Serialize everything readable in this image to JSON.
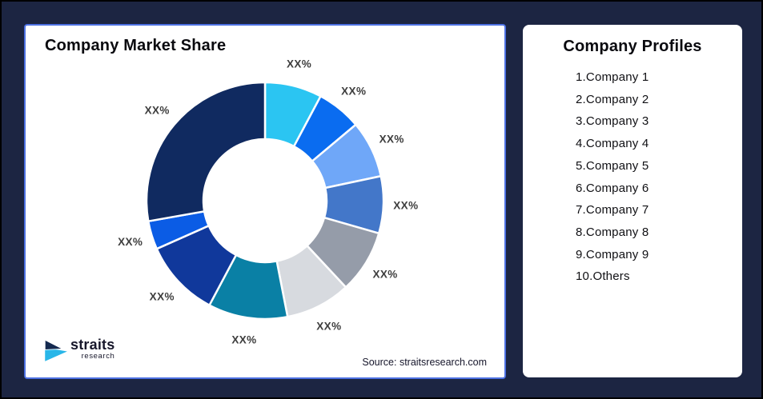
{
  "colors": {
    "background": "#1c2542",
    "frame_border": "#000000",
    "card_background": "#ffffff",
    "market_card_border": "#4c70e2",
    "segment_label_text": "#3e3e3e",
    "title_text": "#0a0a0f"
  },
  "market_share_card": {
    "title": "Company Market Share",
    "source": "Source: straitsresearch.com",
    "logo": {
      "brand": "straits",
      "sub": "research",
      "icon_navy": "#14294f",
      "icon_cyan": "#29b6e8"
    }
  },
  "chart_data": {
    "type": "pie",
    "subtype": "donut",
    "title": "Company Market Share",
    "inner_radius_ratio": 0.52,
    "values_note": "all slice labels shown as placeholder XX%",
    "segments": [
      {
        "label": "XX%",
        "color": "#2bc5f2",
        "start_deg": 0,
        "end_deg": 28
      },
      {
        "label": "XX%",
        "color": "#0a6cf0",
        "start_deg": 28,
        "end_deg": 50
      },
      {
        "label": "XX%",
        "color": "#6fa7f8",
        "start_deg": 50,
        "end_deg": 78
      },
      {
        "label": "XX%",
        "color": "#4377c9",
        "start_deg": 78,
        "end_deg": 106
      },
      {
        "label": "XX%",
        "color": "#959ca9",
        "start_deg": 106,
        "end_deg": 137
      },
      {
        "label": "XX%",
        "color": "#d7dadf",
        "start_deg": 137,
        "end_deg": 169
      },
      {
        "label": "XX%",
        "color": "#0a80a5",
        "start_deg": 169,
        "end_deg": 208
      },
      {
        "label": "XX%",
        "color": "#10389b",
        "start_deg": 208,
        "end_deg": 246
      },
      {
        "label": "XX%",
        "color": "#0b5ce5",
        "start_deg": 246,
        "end_deg": 260
      },
      {
        "label": "XX%",
        "color": "#102a60",
        "start_deg": 260,
        "end_deg": 360
      }
    ]
  },
  "profiles_card": {
    "title": "Company Profiles",
    "items": [
      "1.Company 1",
      "2.Company 2",
      "3.Company 3",
      "4.Company 4",
      "5.Company 5",
      "6.Company 6",
      "7.Company 7",
      "8.Company 8",
      "9.Company 9",
      "10.Others"
    ]
  }
}
